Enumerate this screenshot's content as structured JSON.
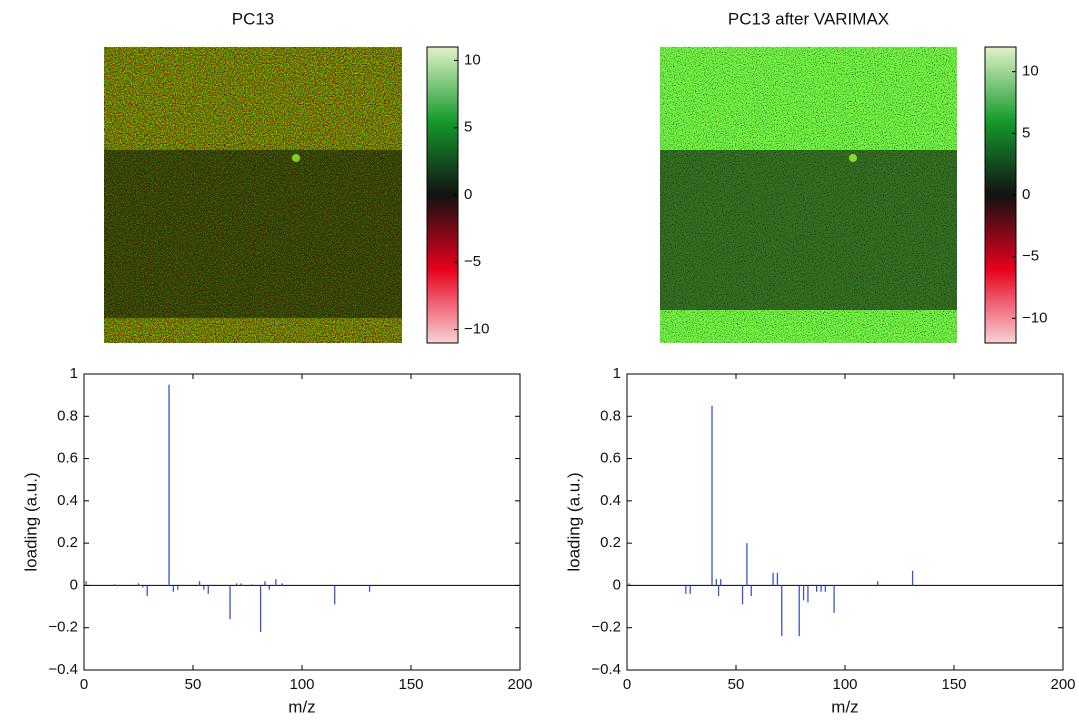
{
  "chart_data": [
    {
      "type": "image",
      "title": "PC13",
      "clim": [
        -11,
        11
      ],
      "cticks": [
        {
          "value": 10,
          "label": "10"
        },
        {
          "value": 5,
          "label": "5"
        },
        {
          "value": 0,
          "label": "0"
        },
        {
          "value": -5,
          "label": "−5"
        },
        {
          "value": -10,
          "label": "−10"
        }
      ],
      "colormap": [
        "#f7d3d6",
        "#e8001c",
        "#121212",
        "#159a2d",
        "#e2f2c8"
      ]
    },
    {
      "type": "image",
      "title": "PC13 after VARIMAX",
      "clim": [
        -12,
        12
      ],
      "cticks": [
        {
          "value": 10,
          "label": "10"
        },
        {
          "value": 5,
          "label": "5"
        },
        {
          "value": 0,
          "label": "0"
        },
        {
          "value": -5,
          "label": "−5"
        },
        {
          "value": -10,
          "label": "−10"
        }
      ],
      "colormap": [
        "#f7d3d6",
        "#e8001c",
        "#121212",
        "#159a2d",
        "#e2f2c8"
      ]
    },
    {
      "type": "stem",
      "xlabel": "m/z",
      "ylabel": "loading (a.u.)",
      "color": "#3d55c4",
      "xlim": [
        0,
        200
      ],
      "ylim": [
        -0.4,
        1
      ],
      "xticks": [
        0,
        50,
        100,
        150,
        200
      ],
      "yticks": [
        {
          "value": -0.4,
          "label": "−0.4"
        },
        {
          "value": -0.2,
          "label": "−0.2"
        },
        0,
        0.2,
        0.4,
        0.6,
        0.8,
        1
      ],
      "x": [
        1,
        14,
        25,
        27,
        29,
        39,
        41,
        43,
        53,
        55,
        57,
        67,
        70,
        72,
        77,
        81,
        83,
        85,
        88,
        91,
        115,
        131
      ],
      "values": [
        0.02,
        0.005,
        0.01,
        -0.01,
        -0.05,
        0.95,
        -0.03,
        -0.02,
        0.02,
        -0.02,
        -0.04,
        -0.16,
        0.01,
        0.01,
        0.005,
        -0.22,
        0.02,
        -0.02,
        0.03,
        0.01,
        -0.09,
        -0.03
      ]
    },
    {
      "type": "stem",
      "xlabel": "m/z",
      "ylabel": "loading (a.u.)",
      "color": "#3d55c4",
      "xlim": [
        0,
        200
      ],
      "ylim": [
        -0.4,
        1
      ],
      "xticks": [
        0,
        50,
        100,
        150,
        200
      ],
      "yticks": [
        {
          "value": -0.4,
          "label": "−0.4"
        },
        {
          "value": -0.2,
          "label": "−0.2"
        },
        0,
        0.2,
        0.4,
        0.6,
        0.8,
        1
      ],
      "x": [
        1,
        27,
        29,
        39,
        41,
        42,
        43,
        53,
        55,
        57,
        67,
        69,
        71,
        79,
        81,
        83,
        87,
        89,
        91,
        95,
        115,
        131
      ],
      "values": [
        0.01,
        -0.04,
        -0.04,
        0.85,
        0.03,
        -0.05,
        0.03,
        -0.09,
        0.2,
        -0.05,
        0.06,
        0.06,
        -0.24,
        -0.24,
        -0.07,
        -0.08,
        -0.03,
        -0.03,
        -0.03,
        -0.13,
        0.02,
        0.07
      ]
    }
  ]
}
